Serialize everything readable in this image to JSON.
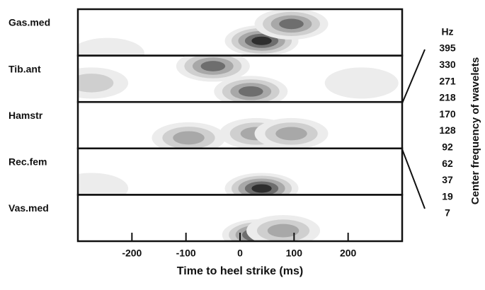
{
  "chart_data": {
    "type": "contour",
    "xlabel": "Time to heel strike (ms)",
    "ylabel": "Center frequency of wavelets",
    "freq_unit": "Hz",
    "frequencies": [
      395,
      330,
      271,
      218,
      170,
      128,
      92,
      62,
      37,
      19,
      7
    ],
    "xlim": [
      -300,
      300
    ],
    "xticks": [
      -200,
      -100,
      0,
      100,
      200
    ],
    "panels": [
      {
        "name": "Gas.med",
        "peaks": [
          {
            "x": 40,
            "hz": 62,
            "level": 5
          },
          {
            "x": 95,
            "hz": 218,
            "level": 4
          },
          {
            "x": -245,
            "hz": 7,
            "level": 1
          }
        ]
      },
      {
        "name": "Tib.ant",
        "peaks": [
          {
            "x": -50,
            "hz": 271,
            "level": 4
          },
          {
            "x": 20,
            "hz": 37,
            "level": 4
          },
          {
            "x": -275,
            "hz": 92,
            "level": 2
          },
          {
            "x": 225,
            "hz": 92,
            "level": 1
          }
        ]
      },
      {
        "name": "Hamstr",
        "peaks": [
          {
            "x": -95,
            "hz": 37,
            "level": 3
          },
          {
            "x": 30,
            "hz": 62,
            "level": 3
          },
          {
            "x": 95,
            "hz": 62,
            "level": 3
          }
        ]
      },
      {
        "name": "Rec.fem",
        "peaks": [
          {
            "x": 40,
            "hz": 19,
            "level": 5
          },
          {
            "x": -275,
            "hz": 19,
            "level": 1
          }
        ]
      },
      {
        "name": "Vas.med",
        "peaks": [
          {
            "x": 35,
            "hz": 19,
            "level": 5
          },
          {
            "x": 80,
            "hz": 37,
            "level": 3
          }
        ]
      }
    ]
  }
}
